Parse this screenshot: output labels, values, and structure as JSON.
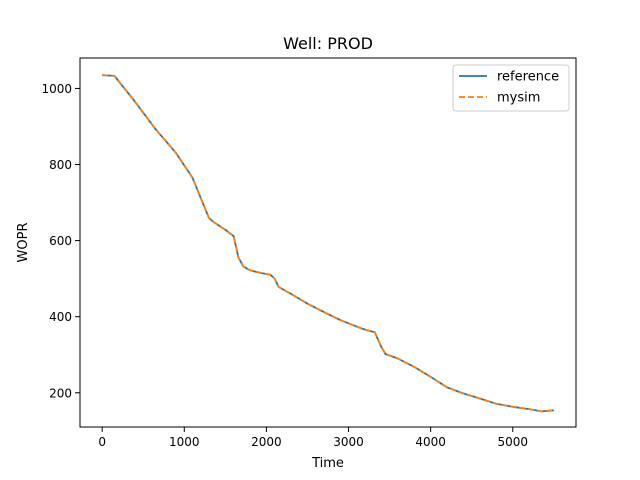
{
  "chart_data": {
    "type": "line",
    "title": "Well: PROD",
    "xlabel": "Time",
    "ylabel": "WOPR",
    "xlim": [
      -270,
      5770
    ],
    "ylim": [
      110,
      1080
    ],
    "xticks": [
      0,
      1000,
      2000,
      3000,
      4000,
      5000
    ],
    "yticks": [
      200,
      400,
      600,
      800,
      1000
    ],
    "grid": false,
    "legend_position": "top-right",
    "series": [
      {
        "name": "reference",
        "color": "#1f77b4",
        "dash": "solid",
        "points": [
          [
            0,
            1035
          ],
          [
            150,
            1033
          ],
          [
            400,
            965
          ],
          [
            650,
            893
          ],
          [
            900,
            830
          ],
          [
            1100,
            765
          ],
          [
            1300,
            660
          ],
          [
            1350,
            650
          ],
          [
            1500,
            628
          ],
          [
            1600,
            612
          ],
          [
            1660,
            555
          ],
          [
            1720,
            532
          ],
          [
            1800,
            522
          ],
          [
            1950,
            514
          ],
          [
            2050,
            510
          ],
          [
            2100,
            500
          ],
          [
            2150,
            478
          ],
          [
            2300,
            460
          ],
          [
            2500,
            434
          ],
          [
            2700,
            412
          ],
          [
            2900,
            391
          ],
          [
            3100,
            374
          ],
          [
            3200,
            366
          ],
          [
            3320,
            359
          ],
          [
            3400,
            320
          ],
          [
            3450,
            302
          ],
          [
            3600,
            290
          ],
          [
            3800,
            268
          ],
          [
            4000,
            242
          ],
          [
            4200,
            214
          ],
          [
            4400,
            198
          ],
          [
            4600,
            185
          ],
          [
            4800,
            171
          ],
          [
            5000,
            163
          ],
          [
            5200,
            157
          ],
          [
            5350,
            151
          ],
          [
            5500,
            154
          ]
        ]
      },
      {
        "name": "mysim",
        "color": "#ff7f0e",
        "dash": "dashed",
        "points": [
          [
            0,
            1035
          ],
          [
            150,
            1033
          ],
          [
            400,
            965
          ],
          [
            650,
            893
          ],
          [
            900,
            830
          ],
          [
            1100,
            765
          ],
          [
            1300,
            660
          ],
          [
            1350,
            650
          ],
          [
            1500,
            628
          ],
          [
            1600,
            612
          ],
          [
            1660,
            555
          ],
          [
            1720,
            532
          ],
          [
            1800,
            522
          ],
          [
            1950,
            514
          ],
          [
            2050,
            510
          ],
          [
            2100,
            500
          ],
          [
            2150,
            478
          ],
          [
            2300,
            460
          ],
          [
            2500,
            434
          ],
          [
            2700,
            412
          ],
          [
            2900,
            391
          ],
          [
            3100,
            374
          ],
          [
            3200,
            366
          ],
          [
            3320,
            359
          ],
          [
            3400,
            320
          ],
          [
            3450,
            302
          ],
          [
            3600,
            290
          ],
          [
            3800,
            268
          ],
          [
            4000,
            242
          ],
          [
            4200,
            214
          ],
          [
            4400,
            198
          ],
          [
            4600,
            185
          ],
          [
            4800,
            171
          ],
          [
            5000,
            163
          ],
          [
            5200,
            157
          ],
          [
            5350,
            151
          ],
          [
            5500,
            154
          ]
        ]
      }
    ]
  }
}
